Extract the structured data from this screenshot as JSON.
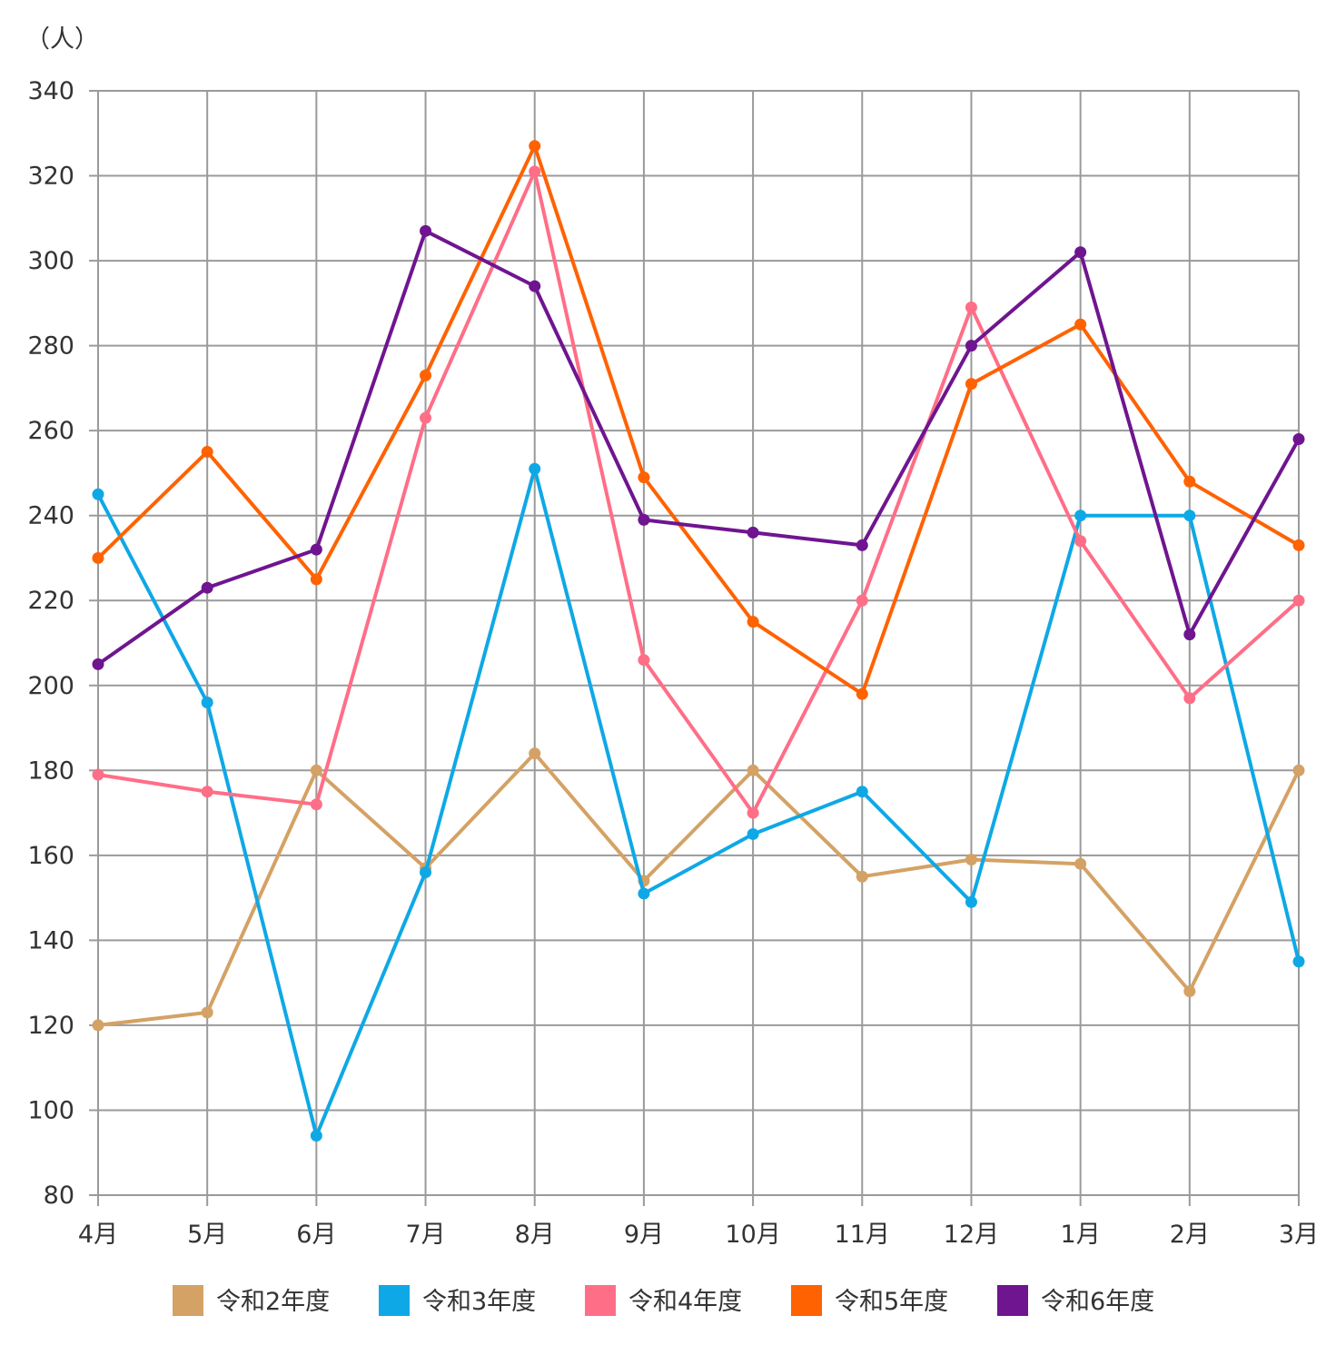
{
  "chart_data": {
    "type": "line",
    "unit_label": "（人）",
    "categories": [
      "4月",
      "5月",
      "6月",
      "7月",
      "8月",
      "9月",
      "10月",
      "11月",
      "12月",
      "1月",
      "2月",
      "3月"
    ],
    "ylim": [
      80,
      340
    ],
    "yticks": [
      80,
      100,
      120,
      140,
      160,
      180,
      200,
      220,
      240,
      260,
      280,
      300,
      320,
      340
    ],
    "grid": true,
    "legend_position": "bottom",
    "series": [
      {
        "name": "令和2年度",
        "color": "#d4a265",
        "values": [
          120,
          123,
          180,
          157,
          184,
          154,
          180,
          155,
          159,
          158,
          128,
          180
        ]
      },
      {
        "name": "令和3年度",
        "color": "#0ea8e6",
        "values": [
          245,
          196,
          94,
          156,
          251,
          151,
          165,
          175,
          149,
          240,
          240,
          135
        ]
      },
      {
        "name": "令和4年度",
        "color": "#ff6e87",
        "values": [
          179,
          175,
          172,
          263,
          321,
          206,
          170,
          220,
          289,
          234,
          197,
          220
        ]
      },
      {
        "name": "令和5年度",
        "color": "#ff6200",
        "values": [
          230,
          255,
          225,
          273,
          327,
          249,
          215,
          198,
          271,
          285,
          248,
          233
        ]
      },
      {
        "name": "令和6年度",
        "color": "#6f1590",
        "values": [
          205,
          223,
          232,
          307,
          294,
          239,
          236,
          233,
          280,
          302,
          212,
          258
        ]
      }
    ]
  }
}
